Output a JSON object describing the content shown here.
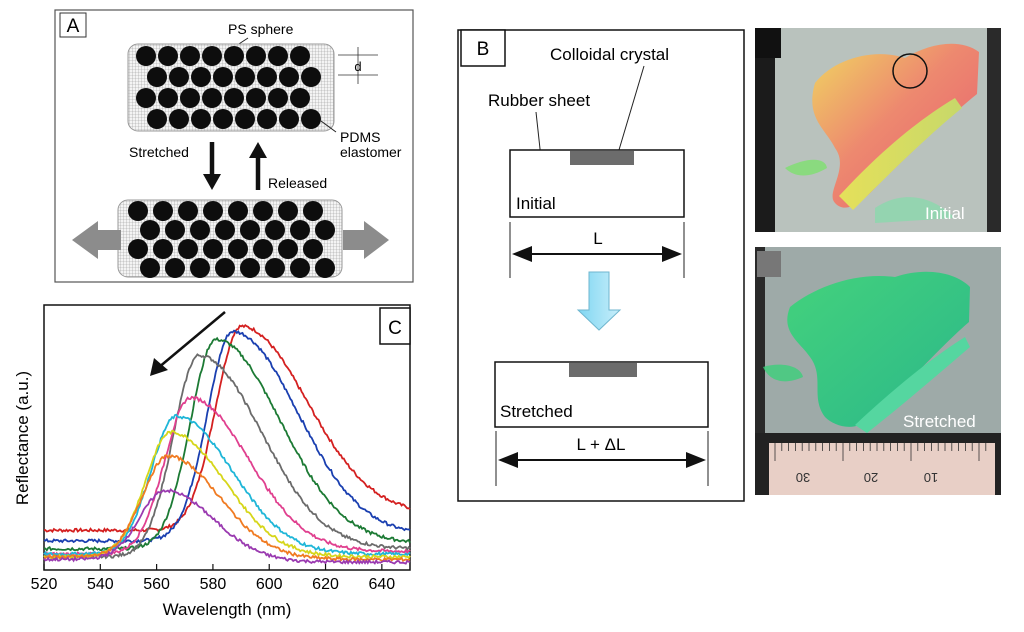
{
  "panel_a": {
    "label": "A",
    "ps_sphere": "PS sphere",
    "d": "d",
    "pdms_line1": "PDMS",
    "pdms_line2": "elastomer",
    "stretched": "Stretched",
    "released": "Released"
  },
  "panel_b": {
    "label": "B",
    "colloidal_crystal": "Colloidal crystal",
    "rubber_sheet": "Rubber sheet",
    "initial": "Initial",
    "L": "L",
    "stretched": "Stretched",
    "L_delta": "L + ΔL"
  },
  "photos": {
    "initial": "Initial",
    "stretched": "Stretched",
    "ruler_ticks": [
      "30",
      "20",
      "10"
    ]
  },
  "chart_data": {
    "type": "line",
    "label": "C",
    "title": "",
    "xlabel": "Wavelength (nm)",
    "ylabel": "Reflectance (a.u.)",
    "xlim": [
      520,
      650
    ],
    "ylim": [
      0,
      1
    ],
    "xticks": [
      "520",
      "540",
      "560",
      "580",
      "600",
      "620",
      "640"
    ],
    "annotation": "arrow indicating peak shift toward shorter wavelength",
    "series": [
      {
        "name": "red",
        "color": "#d42020",
        "peak_nm": 590,
        "peak": 0.92,
        "base_left": 0.15,
        "base_right": 0.21
      },
      {
        "name": "blue",
        "color": "#1a3fb0",
        "peak_nm": 587,
        "peak": 0.9,
        "base_left": 0.11,
        "base_right": 0.13
      },
      {
        "name": "green",
        "color": "#1c7a34",
        "peak_nm": 581,
        "peak": 0.87,
        "base_left": 0.08,
        "base_right": 0.1
      },
      {
        "name": "gray",
        "color": "#6b6b6b",
        "peak_nm": 575,
        "peak": 0.81,
        "base_left": 0.05,
        "base_right": 0.08
      },
      {
        "name": "magenta",
        "color": "#e0408f",
        "peak_nm": 572,
        "peak": 0.65,
        "base_left": 0.06,
        "base_right": 0.07
      },
      {
        "name": "cyan",
        "color": "#1fb6d8",
        "peak_nm": 567,
        "peak": 0.58,
        "base_left": 0.06,
        "base_right": 0.06
      },
      {
        "name": "yellow",
        "color": "#d6d61a",
        "peak_nm": 565,
        "peak": 0.52,
        "base_left": 0.05,
        "base_right": 0.05
      },
      {
        "name": "orange",
        "color": "#f07b22",
        "peak_nm": 564,
        "peak": 0.43,
        "base_left": 0.05,
        "base_right": 0.04
      },
      {
        "name": "purple",
        "color": "#9a3ab0",
        "peak_nm": 563,
        "peak": 0.3,
        "base_left": 0.04,
        "base_right": 0.03
      }
    ]
  }
}
